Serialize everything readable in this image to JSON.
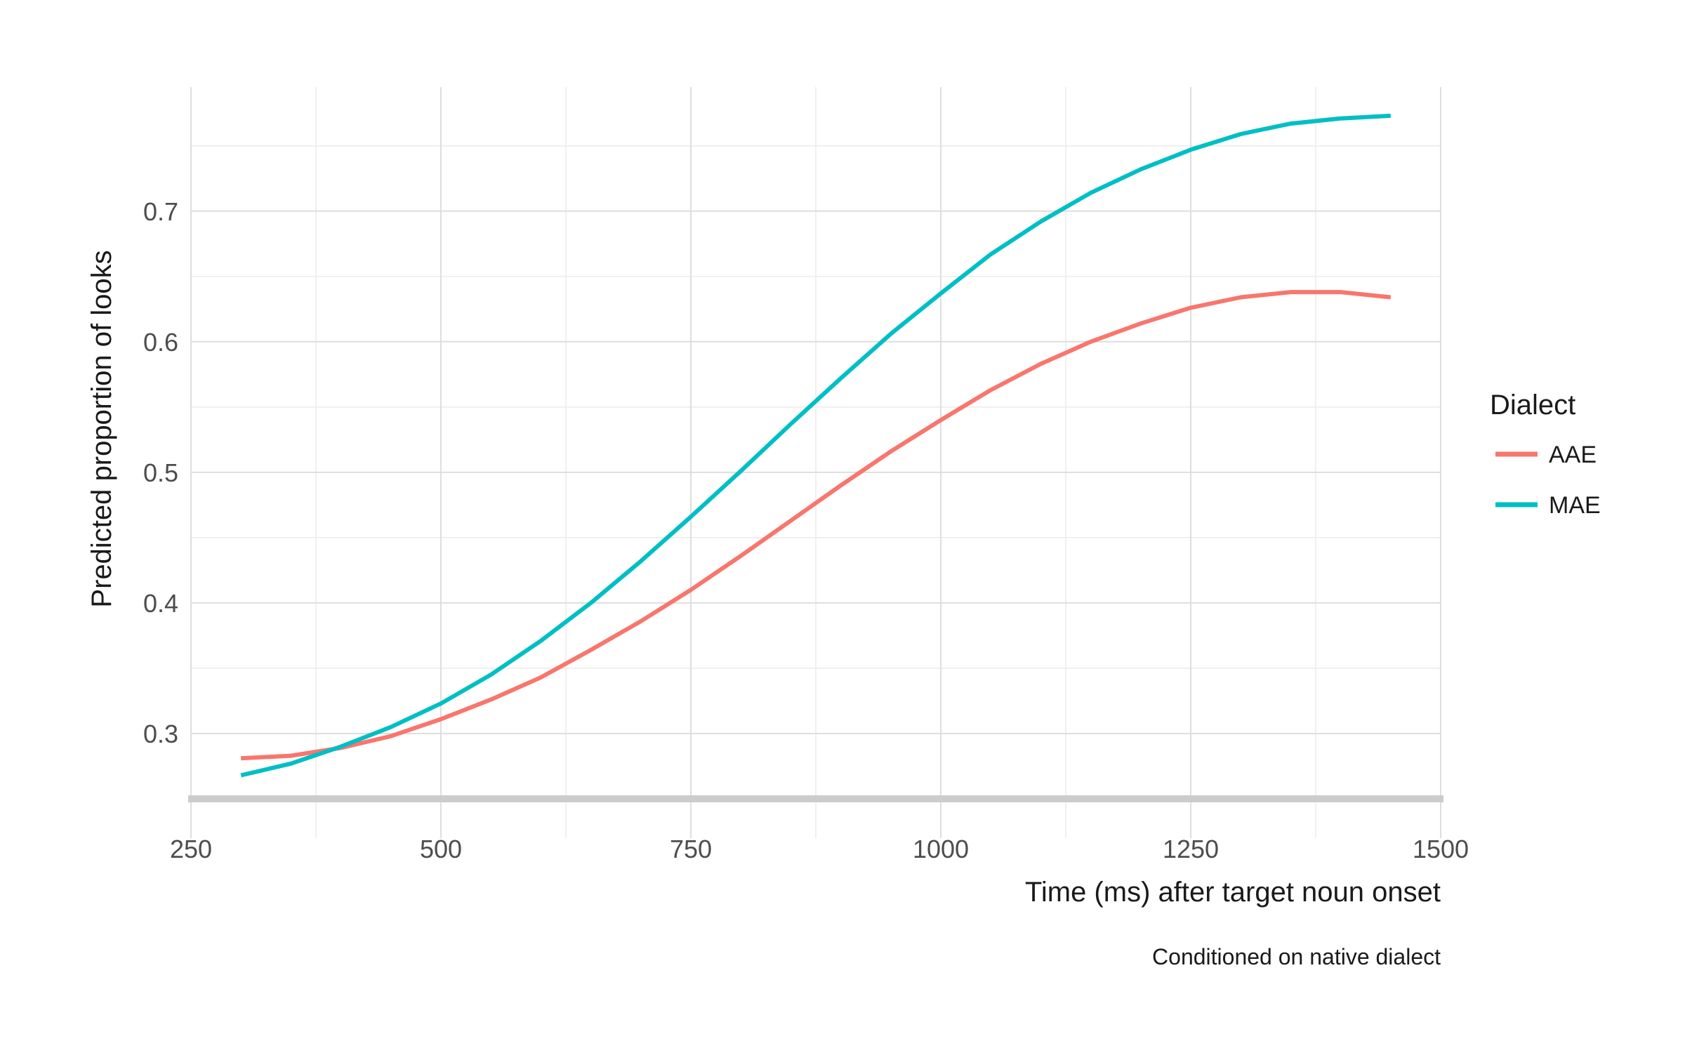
{
  "chart_data": {
    "type": "line",
    "xlabel": "Time (ms) after target noun onset",
    "ylabel": "Predicted proportion of looks",
    "caption": "Conditioned on native dialect",
    "xlim": [
      250,
      1500
    ],
    "ylim": [
      0.25,
      0.795
    ],
    "x_ticks": [
      250,
      500,
      750,
      1000,
      1250,
      1500
    ],
    "x_tick_labels": [
      "250",
      "500",
      "750",
      "1000",
      "1250",
      "1500"
    ],
    "y_ticks": [
      0.3,
      0.4,
      0.5,
      0.6,
      0.7
    ],
    "y_tick_labels": [
      "0.3",
      "0.4",
      "0.5",
      "0.6",
      "0.7"
    ],
    "grid": true,
    "legend": {
      "title": "Dialect",
      "position": "right"
    },
    "x": [
      300,
      350,
      400,
      450,
      500,
      550,
      600,
      650,
      700,
      750,
      800,
      850,
      900,
      950,
      1000,
      1050,
      1100,
      1150,
      1200,
      1250,
      1300,
      1350,
      1400,
      1450
    ],
    "series": [
      {
        "name": "AAE",
        "color": "#F8766D",
        "values": [
          0.281,
          0.283,
          0.289,
          0.298,
          0.311,
          0.326,
          0.343,
          0.364,
          0.386,
          0.41,
          0.436,
          0.463,
          0.49,
          0.516,
          0.54,
          0.563,
          0.583,
          0.6,
          0.614,
          0.626,
          0.634,
          0.638,
          0.638,
          0.634
        ]
      },
      {
        "name": "MAE",
        "color": "#00BFC4",
        "values": [
          0.268,
          0.277,
          0.29,
          0.305,
          0.323,
          0.345,
          0.371,
          0.4,
          0.432,
          0.466,
          0.501,
          0.537,
          0.572,
          0.606,
          0.637,
          0.667,
          0.692,
          0.714,
          0.732,
          0.747,
          0.759,
          0.767,
          0.771,
          0.773
        ]
      }
    ]
  }
}
